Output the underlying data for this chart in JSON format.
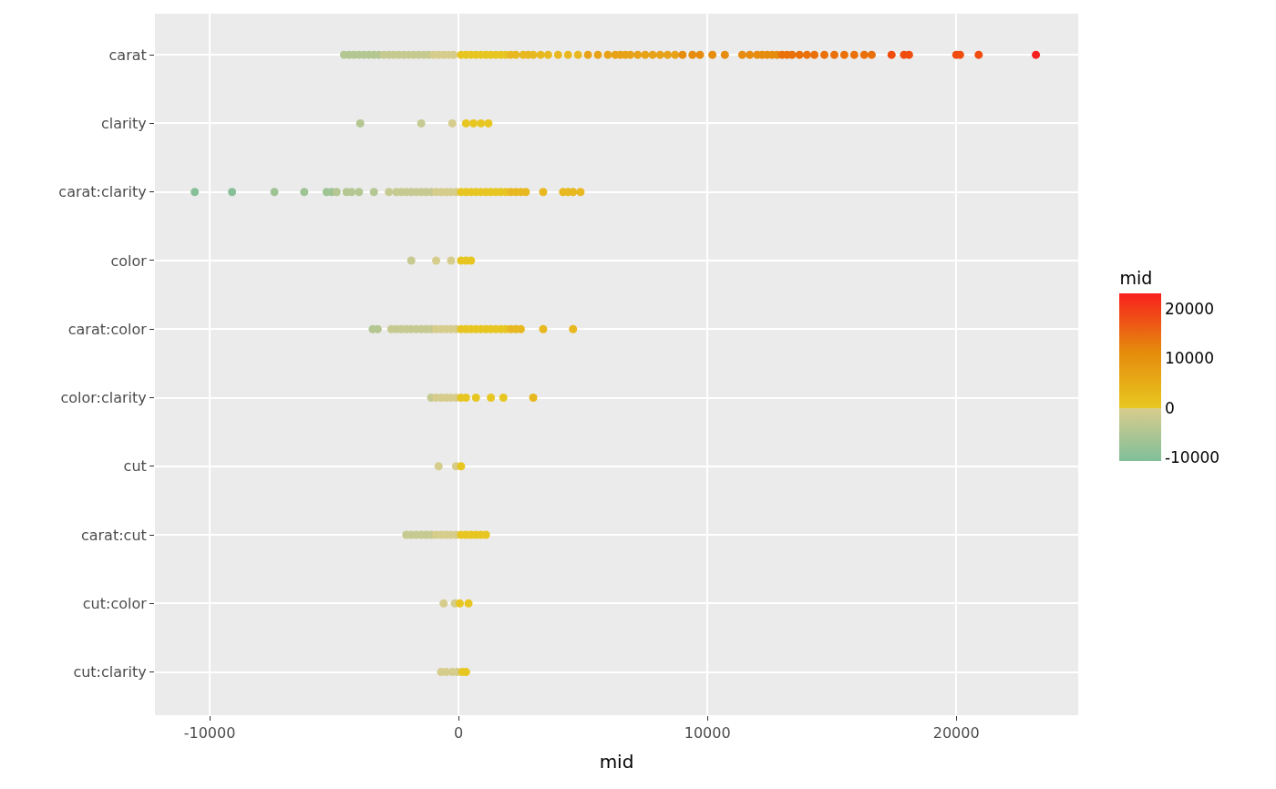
{
  "chart_data": {
    "type": "scatter",
    "orientation": "horizontal",
    "xlabel": "mid",
    "clabel": "mid",
    "categories": [
      "carat",
      "clarity",
      "carat:clarity",
      "color",
      "carat:color",
      "color:clarity",
      "cut",
      "carat:cut",
      "cut:color",
      "cut:clarity"
    ],
    "xlim": [
      -12200,
      24900
    ],
    "xticks": [
      -10000,
      0,
      10000,
      20000
    ],
    "clim": [
      -10600,
      23200
    ],
    "cticks": [
      -10000,
      0,
      10000,
      20000
    ],
    "colors": [
      "#80bf9a",
      "#d8cc8c",
      "#e8c820",
      "#e58a0c",
      "#f8201e"
    ],
    "grid": true,
    "marker": "circle",
    "series": [
      {
        "x": [
          "carat",
          "carat",
          "carat",
          "carat",
          "carat",
          "carat",
          "carat",
          "carat",
          "carat",
          "carat",
          "carat",
          "carat",
          "carat",
          "carat",
          "carat",
          "carat",
          "carat",
          "carat",
          "carat",
          "carat",
          "carat",
          "carat",
          "carat",
          "carat",
          "carat",
          "carat",
          "carat",
          "carat",
          "carat",
          "carat",
          "carat",
          "carat",
          "carat",
          "carat",
          "carat",
          "carat",
          "carat",
          "carat",
          "carat",
          "carat",
          "carat",
          "carat",
          "carat",
          "carat",
          "carat",
          "carat",
          "carat",
          "carat",
          "carat",
          "carat",
          "carat",
          "carat",
          "carat",
          "carat",
          "carat",
          "carat",
          "carat",
          "carat",
          "carat",
          "carat",
          "carat",
          "carat",
          "carat",
          "carat",
          "carat",
          "carat",
          "carat",
          "carat",
          "carat",
          "carat",
          "carat",
          "carat",
          "carat",
          "carat",
          "carat",
          "carat",
          "carat",
          "carat",
          "carat",
          "carat",
          "carat",
          "carat",
          "carat",
          "carat",
          "carat",
          "carat",
          "carat"
        ],
        "values": [
          -4600,
          -4400,
          -4200,
          -4000,
          -3800,
          -3600,
          -3400,
          -3200,
          -3000,
          -2800,
          -2600,
          -2400,
          -2200,
          -2000,
          -1800,
          -1600,
          -1400,
          -1200,
          -1000,
          -800,
          -600,
          -400,
          -200,
          100,
          300,
          500,
          700,
          900,
          1100,
          1300,
          1500,
          1700,
          1900,
          2100,
          2300,
          2600,
          2800,
          3000,
          3300,
          3600,
          4000,
          4400,
          4800,
          5200,
          5600,
          6000,
          6300,
          6500,
          6700,
          6900,
          7200,
          7500,
          7800,
          8100,
          8400,
          8700,
          9000,
          9400,
          9700,
          10200,
          10700,
          11400,
          11700,
          12000,
          12200,
          12400,
          12600,
          12800,
          13000,
          13200,
          13400,
          13700,
          14000,
          14300,
          14700,
          15100,
          15500,
          15900,
          16300,
          16600,
          17400,
          17900,
          18100,
          20000,
          20150,
          20900,
          23200
        ],
        "colors": [
          "#b4c792",
          "#b4c792",
          "#b4c792",
          "#b4c792",
          "#b4c792",
          "#b4c792",
          "#b4c792",
          "#b4c792",
          "#c6ca90",
          "#c6ca90",
          "#c6ca90",
          "#c6ca90",
          "#c6ca90",
          "#c6ca90",
          "#c6ca90",
          "#c6ca90",
          "#c6ca90",
          "#c6ca90",
          "#d6cc8c",
          "#d6cc8c",
          "#d6cc8c",
          "#d6cc8c",
          "#d6cc8c",
          "#e8c622",
          "#e8c622",
          "#e8c622",
          "#e8c622",
          "#e8c622",
          "#e8c622",
          "#e8c622",
          "#e8c622",
          "#e8c622",
          "#e8c622",
          "#e8b820",
          "#e8b820",
          "#e8b820",
          "#e8b820",
          "#e8b820",
          "#e8b820",
          "#e8b820",
          "#e8b820",
          "#e8b820",
          "#e8b820",
          "#e7a218",
          "#e7a218",
          "#e7a218",
          "#e7a218",
          "#e7a218",
          "#e7a218",
          "#e7a218",
          "#e7a218",
          "#e7a218",
          "#e7a218",
          "#e7a218",
          "#e7a218",
          "#e7a218",
          "#e68c0e",
          "#e68c0e",
          "#e68c0e",
          "#e68c0e",
          "#e68c0e",
          "#e68c0e",
          "#e68c0e",
          "#e68c0e",
          "#e68c0e",
          "#e68c0e",
          "#e68c0e",
          "#e68c0e",
          "#ea700a",
          "#ea700a",
          "#ea700a",
          "#ea700a",
          "#ea700a",
          "#ea700a",
          "#ea700a",
          "#ea700a",
          "#ea700a",
          "#ea700a",
          "#ea700a",
          "#ea700a",
          "#f04c0e",
          "#f04c0e",
          "#f04c0e",
          "#f04c0e",
          "#f04c0e",
          "#f04c0e",
          "#f8201e"
        ]
      },
      {
        "x": [
          "clarity",
          "clarity",
          "clarity",
          "clarity",
          "clarity",
          "clarity",
          "clarity"
        ],
        "values": [
          -3950,
          -1500,
          -250,
          300,
          600,
          900,
          1200
        ],
        "colors": [
          "#b4c792",
          "#c6ca90",
          "#d6cc8c",
          "#e8c622",
          "#e8c622",
          "#e8c622",
          "#e8c622"
        ]
      },
      {
        "x": [
          "carat:clarity",
          "carat:clarity",
          "carat:clarity",
          "carat:clarity",
          "carat:clarity",
          "carat:clarity",
          "carat:clarity",
          "carat:clarity",
          "carat:clarity",
          "carat:clarity",
          "carat:clarity",
          "carat:clarity",
          "carat:clarity",
          "carat:clarity",
          "carat:clarity",
          "carat:clarity",
          "carat:clarity",
          "carat:clarity",
          "carat:clarity",
          "carat:clarity",
          "carat:clarity",
          "carat:clarity",
          "carat:clarity",
          "carat:clarity",
          "carat:clarity",
          "carat:clarity",
          "carat:clarity",
          "carat:clarity",
          "carat:clarity",
          "carat:clarity",
          "carat:clarity",
          "carat:clarity",
          "carat:clarity",
          "carat:clarity",
          "carat:clarity",
          "carat:clarity",
          "carat:clarity",
          "carat:clarity",
          "carat:clarity",
          "carat:clarity",
          "carat:clarity",
          "carat:clarity",
          "carat:clarity",
          "carat:clarity"
        ],
        "values": [
          -10600,
          -9100,
          -7400,
          -6200,
          -5300,
          -5100,
          -4900,
          -4500,
          -4300,
          -4000,
          -3400,
          -2800,
          -2500,
          -2300,
          -2100,
          -1900,
          -1700,
          -1500,
          -1300,
          -1100,
          -900,
          -700,
          -500,
          -300,
          -100,
          100,
          300,
          500,
          700,
          900,
          1100,
          1300,
          1500,
          1700,
          1900,
          2100,
          2300,
          2500,
          2700,
          3400,
          4200,
          4400,
          4600,
          4900
        ],
        "colors": [
          "#86bf98",
          "#86bf98",
          "#9ec395",
          "#9ec395",
          "#9ec395",
          "#9ec395",
          "#b4c792",
          "#b4c792",
          "#b4c792",
          "#b4c792",
          "#b4c792",
          "#c6ca90",
          "#c6ca90",
          "#c6ca90",
          "#c6ca90",
          "#c6ca90",
          "#c6ca90",
          "#c6ca90",
          "#c6ca90",
          "#c6ca90",
          "#d6cc8c",
          "#d6cc8c",
          "#d6cc8c",
          "#d6cc8c",
          "#d6cc8c",
          "#e8c622",
          "#e8c622",
          "#e8c622",
          "#e8c622",
          "#e8c622",
          "#e8c622",
          "#e8c622",
          "#e8c622",
          "#e8c622",
          "#e8c622",
          "#e8b820",
          "#e8b820",
          "#e8b820",
          "#e8b820",
          "#e8b820",
          "#e8b820",
          "#e8b820",
          "#e8b820",
          "#e8b820"
        ]
      },
      {
        "x": [
          "color",
          "color",
          "color",
          "color",
          "color",
          "color"
        ],
        "values": [
          -1900,
          -900,
          -300,
          100,
          300,
          500
        ],
        "colors": [
          "#c6ca90",
          "#d6cc8c",
          "#d6cc8c",
          "#e8c622",
          "#e8c622",
          "#e8c622"
        ]
      },
      {
        "x": [
          "carat:color",
          "carat:color",
          "carat:color",
          "carat:color",
          "carat:color",
          "carat:color",
          "carat:color",
          "carat:color",
          "carat:color",
          "carat:color",
          "carat:color",
          "carat:color",
          "carat:color",
          "carat:color",
          "carat:color",
          "carat:color",
          "carat:color",
          "carat:color",
          "carat:color",
          "carat:color",
          "carat:color",
          "carat:color",
          "carat:color",
          "carat:color",
          "carat:color",
          "carat:color",
          "carat:color",
          "carat:color",
          "carat:color",
          "carat:color",
          "carat:color"
        ],
        "values": [
          -3450,
          -3250,
          -2700,
          -2500,
          -2300,
          -2100,
          -1900,
          -1700,
          -1500,
          -1300,
          -1100,
          -900,
          -700,
          -500,
          -300,
          -100,
          100,
          300,
          500,
          700,
          900,
          1100,
          1300,
          1500,
          1700,
          1900,
          2100,
          2300,
          2500,
          3400,
          4600
        ],
        "colors": [
          "#b4c792",
          "#b4c792",
          "#c6ca90",
          "#c6ca90",
          "#c6ca90",
          "#c6ca90",
          "#c6ca90",
          "#c6ca90",
          "#c6ca90",
          "#c6ca90",
          "#c6ca90",
          "#d6cc8c",
          "#d6cc8c",
          "#d6cc8c",
          "#d6cc8c",
          "#d6cc8c",
          "#e8c622",
          "#e8c622",
          "#e8c622",
          "#e8c622",
          "#e8c622",
          "#e8c622",
          "#e8c622",
          "#e8c622",
          "#e8c622",
          "#e8c622",
          "#e8b820",
          "#e8b820",
          "#e8b820",
          "#e8b820",
          "#e8b820"
        ]
      },
      {
        "x": [
          "color:clarity",
          "color:clarity",
          "color:clarity",
          "color:clarity",
          "color:clarity",
          "color:clarity",
          "color:clarity",
          "color:clarity",
          "color:clarity",
          "color:clarity",
          "color:clarity",
          "color:clarity"
        ],
        "values": [
          -1100,
          -900,
          -700,
          -500,
          -300,
          -100,
          100,
          300,
          700,
          1300,
          1800,
          3000
        ],
        "colors": [
          "#c6ca90",
          "#d6cc8c",
          "#d6cc8c",
          "#d6cc8c",
          "#d6cc8c",
          "#d6cc8c",
          "#e8c622",
          "#e8c622",
          "#e8c622",
          "#e8c622",
          "#e8c622",
          "#e8b820"
        ]
      },
      {
        "x": [
          "cut",
          "cut",
          "cut"
        ],
        "values": [
          -800,
          -100,
          100
        ],
        "colors": [
          "#d6cc8c",
          "#d6cc8c",
          "#e8c622"
        ]
      },
      {
        "x": [
          "carat:cut",
          "carat:cut",
          "carat:cut",
          "carat:cut",
          "carat:cut",
          "carat:cut",
          "carat:cut",
          "carat:cut",
          "carat:cut",
          "carat:cut",
          "carat:cut",
          "carat:cut",
          "carat:cut",
          "carat:cut",
          "carat:cut",
          "carat:cut",
          "carat:cut"
        ],
        "values": [
          -2100,
          -1900,
          -1700,
          -1500,
          -1300,
          -1100,
          -900,
          -700,
          -500,
          -300,
          -100,
          100,
          300,
          500,
          700,
          900,
          1100
        ],
        "colors": [
          "#c6ca90",
          "#c6ca90",
          "#c6ca90",
          "#c6ca90",
          "#c6ca90",
          "#c6ca90",
          "#d6cc8c",
          "#d6cc8c",
          "#d6cc8c",
          "#d6cc8c",
          "#d6cc8c",
          "#e8c622",
          "#e8c622",
          "#e8c622",
          "#e8c622",
          "#e8c622",
          "#e8c622"
        ]
      },
      {
        "x": [
          "cut:color",
          "cut:color",
          "cut:color",
          "cut:color"
        ],
        "values": [
          -600,
          -150,
          50,
          400
        ],
        "colors": [
          "#d6cc8c",
          "#d6cc8c",
          "#e8c622",
          "#e8c622"
        ]
      },
      {
        "x": [
          "cut:clarity",
          "cut:clarity",
          "cut:clarity",
          "cut:clarity",
          "cut:clarity",
          "cut:clarity"
        ],
        "values": [
          -700,
          -500,
          -250,
          -50,
          150,
          300
        ],
        "colors": [
          "#d6cc8c",
          "#d6cc8c",
          "#d6cc8c",
          "#d6cc8c",
          "#e8c622",
          "#e8c622"
        ]
      }
    ]
  }
}
